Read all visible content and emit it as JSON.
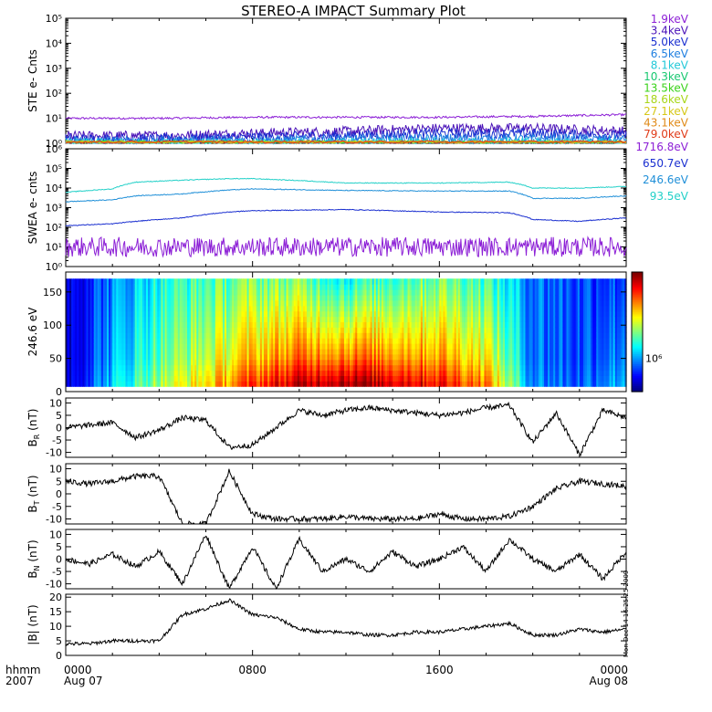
{
  "title": "STEREO-A IMPACT Summary Plot",
  "timestamp_side": "Mon Dec 14 16:25:25 2009",
  "x_axis": {
    "left_labels": [
      "hhmm",
      "2007"
    ],
    "ticks": [
      {
        "hour": 0,
        "line1": "0000",
        "line2": "Aug 07"
      },
      {
        "hour": 8,
        "line1": "0800",
        "line2": ""
      },
      {
        "hour": 16,
        "line1": "1600",
        "line2": ""
      },
      {
        "hour": 24,
        "line1": "0000",
        "line2": "Aug 08"
      }
    ],
    "range_hours": [
      0,
      24
    ]
  },
  "panels": {
    "ste": {
      "ylabel": "STE e- Cnts",
      "scale": "log",
      "ytick_labels": [
        "10⁰",
        "10¹",
        "10²",
        "10³",
        "10⁴",
        "10⁵"
      ],
      "legend": [
        {
          "label": "1.9keV",
          "color": "#8c1fd6"
        },
        {
          "label": "3.4keV",
          "color": "#4a12b8"
        },
        {
          "label": "5.0keV",
          "color": "#1a2fd0"
        },
        {
          "label": "6.5keV",
          "color": "#1f7fe0"
        },
        {
          "label": "8.1keV",
          "color": "#22c8d8"
        },
        {
          "label": "10.3keV",
          "color": "#18c870"
        },
        {
          "label": "13.5keV",
          "color": "#3ad21a"
        },
        {
          "label": "18.6keV",
          "color": "#a8d618"
        },
        {
          "label": "27.1keV",
          "color": "#d6c818"
        },
        {
          "label": "43.1keV",
          "color": "#e08a18"
        },
        {
          "label": "79.0keV",
          "color": "#e03a18"
        }
      ]
    },
    "swea": {
      "ylabel": "SWEA e- cnts",
      "scale": "log",
      "ytick_labels": [
        "10⁰",
        "10¹",
        "10²",
        "10³",
        "10⁴",
        "10⁵",
        "10⁶"
      ],
      "legend": [
        {
          "label": "1716.8eV",
          "color": "#8c1fd6"
        },
        {
          "label": "650.7eV",
          "color": "#1a2fd0"
        },
        {
          "label": "246.6eV",
          "color": "#1f8fd8"
        },
        {
          "label": "93.5eV",
          "color": "#22d0c8"
        }
      ]
    },
    "pad": {
      "ylabel": "246.6 eV",
      "ytick_labels": [
        "0",
        "50",
        "100",
        "150"
      ],
      "ylim": [
        0,
        180
      ],
      "colorbar_label": "10⁶"
    },
    "br": {
      "ylabel_main": "B",
      "ylabel_sub": "R",
      "ylabel_unit": " (nT)",
      "ytick_labels": [
        "-10",
        "-5",
        "0",
        "5",
        "10"
      ],
      "ylim": [
        -12,
        12
      ]
    },
    "bt": {
      "ylabel_main": "B",
      "ylabel_sub": "T",
      "ylabel_unit": " (nT)",
      "ytick_labels": [
        "-10",
        "-5",
        "0",
        "5",
        "10"
      ],
      "ylim": [
        -12,
        12
      ]
    },
    "bn": {
      "ylabel_main": "B",
      "ylabel_sub": "N",
      "ylabel_unit": " (nT)",
      "ytick_labels": [
        "-10",
        "-5",
        "0",
        "5",
        "10"
      ],
      "ylim": [
        -12,
        12
      ]
    },
    "bmag": {
      "ylabel": "|B| (nT)",
      "ytick_labels": [
        "0",
        "5",
        "10",
        "15",
        "20"
      ],
      "ylim": [
        0,
        21
      ]
    }
  },
  "chart_data": [
    {
      "type": "line",
      "ylabel": "STE e- Cnts",
      "yscale": "log",
      "ylim": [
        1,
        100000
      ],
      "x": [
        0,
        4,
        8,
        12,
        16,
        20,
        24
      ],
      "series": [
        {
          "name": "1.9keV",
          "values": [
            10,
            10,
            11,
            11,
            11,
            12,
            14
          ]
        },
        {
          "name": "3.4keV",
          "values": [
            2,
            2,
            2.5,
            3,
            4,
            4,
            3
          ]
        },
        {
          "name": "5.0keV",
          "values": [
            1.5,
            1.5,
            1.8,
            2,
            2.5,
            2.5,
            2
          ]
        },
        {
          "name": "6.5keV",
          "values": [
            1.2,
            1.2,
            1.3,
            1.4,
            1.5,
            1.5,
            1.4
          ]
        },
        {
          "name": "8.1keV",
          "values": [
            1,
            1,
            1,
            1,
            1.1,
            1.1,
            1
          ]
        }
      ]
    },
    {
      "type": "line",
      "ylabel": "SWEA e- cnts",
      "yscale": "log",
      "ylim": [
        1,
        1000000
      ],
      "x": [
        0,
        2,
        3,
        5,
        7,
        8,
        12,
        16,
        19,
        20,
        22,
        24
      ],
      "series": [
        {
          "name": "1716.8eV",
          "values": [
            10,
            10,
            10,
            10,
            10,
            10,
            10,
            10,
            10,
            10,
            10,
            10
          ]
        },
        {
          "name": "650.7eV",
          "values": [
            120,
            150,
            200,
            300,
            600,
            700,
            800,
            600,
            550,
            250,
            200,
            300
          ]
        },
        {
          "name": "246.6eV",
          "values": [
            2000,
            2500,
            4000,
            5000,
            8000,
            9000,
            7500,
            7000,
            7000,
            3000,
            3000,
            4000
          ]
        },
        {
          "name": "93.5eV",
          "values": [
            6000,
            9000,
            20000,
            25000,
            30000,
            30000,
            18000,
            18000,
            20000,
            10000,
            10000,
            12000
          ]
        }
      ]
    },
    {
      "type": "heatmap",
      "ylabel": "246.6 eV",
      "ylim": [
        0,
        180
      ],
      "x": [
        0,
        2,
        4,
        6,
        8,
        10,
        12,
        14,
        16,
        18,
        20,
        22,
        24
      ],
      "level_low_angles": [
        0.08,
        0.3,
        0.5,
        0.6,
        0.75,
        0.85,
        0.9,
        0.85,
        0.8,
        0.7,
        0.25,
        0.2,
        0.3
      ],
      "level_high_angles": [
        0.1,
        0.25,
        0.4,
        0.45,
        0.5,
        0.5,
        0.4,
        0.45,
        0.5,
        0.45,
        0.25,
        0.2,
        0.2
      ]
    },
    {
      "type": "line",
      "ylabel": "B_R (nT)",
      "ylim": [
        -12,
        12
      ],
      "x": [
        0,
        1,
        2,
        3,
        4,
        5,
        6,
        7,
        8,
        9,
        10,
        11,
        12,
        13,
        14,
        15,
        16,
        17,
        18,
        19,
        20,
        21,
        22,
        23,
        24
      ],
      "values": [
        0,
        1,
        2,
        -4,
        -1,
        4,
        3,
        -8,
        -7,
        0,
        7,
        5,
        7,
        8,
        7,
        6,
        5,
        6,
        8,
        9,
        -6,
        6,
        -11,
        7,
        4
      ]
    },
    {
      "type": "line",
      "ylabel": "B_T (nT)",
      "ylim": [
        -12,
        12
      ],
      "x": [
        0,
        1,
        2,
        3,
        4,
        5,
        6,
        7,
        8,
        9,
        10,
        11,
        12,
        13,
        14,
        15,
        16,
        17,
        18,
        19,
        20,
        21,
        22,
        23,
        24
      ],
      "values": [
        5,
        4,
        5,
        7,
        7,
        -12,
        -12,
        9,
        -8,
        -10,
        -10,
        -10,
        -9,
        -10,
        -10,
        -10,
        -8,
        -10,
        -10,
        -9,
        -5,
        2,
        5,
        4,
        3
      ]
    },
    {
      "type": "line",
      "ylabel": "B_N (nT)",
      "ylim": [
        -12,
        12
      ],
      "x": [
        0,
        1,
        2,
        3,
        4,
        5,
        6,
        7,
        8,
        9,
        10,
        11,
        12,
        13,
        14,
        15,
        16,
        17,
        18,
        19,
        20,
        21,
        22,
        23,
        24
      ],
      "values": [
        0,
        -2,
        2,
        -3,
        3,
        -10,
        10,
        -12,
        5,
        -12,
        8,
        -5,
        0,
        -5,
        3,
        -3,
        0,
        5,
        -5,
        8,
        0,
        -5,
        2,
        -8,
        3
      ]
    },
    {
      "type": "line",
      "ylabel": "|B| (nT)",
      "ylim": [
        0,
        21
      ],
      "x": [
        0,
        1,
        2,
        3,
        4,
        5,
        6,
        7,
        8,
        9,
        10,
        11,
        12,
        13,
        14,
        15,
        16,
        17,
        18,
        19,
        20,
        21,
        22,
        23,
        24
      ],
      "values": [
        4,
        4,
        5,
        5,
        5,
        14,
        16,
        19,
        14,
        13,
        9,
        8,
        8,
        7,
        7,
        8,
        8,
        9,
        10,
        11,
        7,
        7,
        9,
        8,
        9
      ]
    }
  ]
}
